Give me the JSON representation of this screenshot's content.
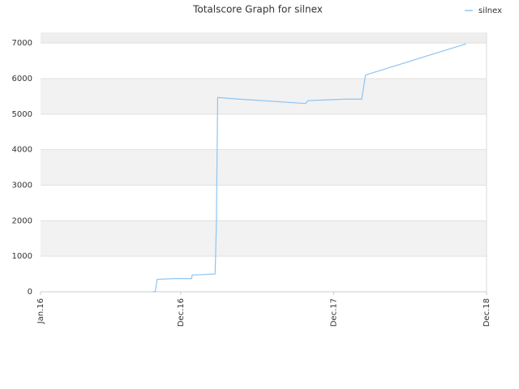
{
  "chart_data": {
    "type": "line",
    "title": "Totalscore Graph for silnex",
    "series": [
      {
        "name": "silnex",
        "color": "#8ec4f2",
        "x": [
          8.8,
          9.0,
          9.15,
          10.5,
          11.85,
          11.9,
          13.7,
          13.8,
          13.9,
          15.3,
          20.8,
          21.0,
          23.8,
          25.2,
          25.5,
          33.4
        ],
        "values": [
          0,
          0,
          350,
          370,
          370,
          470,
          500,
          1950,
          5470,
          5430,
          5300,
          5380,
          5420,
          5420,
          6100,
          6980
        ]
      }
    ],
    "xlim": [
      0,
      35
    ],
    "xticks": [
      {
        "value": 0,
        "label": "Jan.16"
      },
      {
        "value": 11,
        "label": "Dec.16"
      },
      {
        "value": 23,
        "label": "Dec.17"
      },
      {
        "value": 35,
        "label": "Dec.18"
      }
    ],
    "ylim": [
      0,
      7300
    ],
    "yticks": [
      0,
      1000,
      2000,
      3000,
      4000,
      5000,
      6000,
      7000
    ],
    "grid": true,
    "legend": "top-right"
  }
}
